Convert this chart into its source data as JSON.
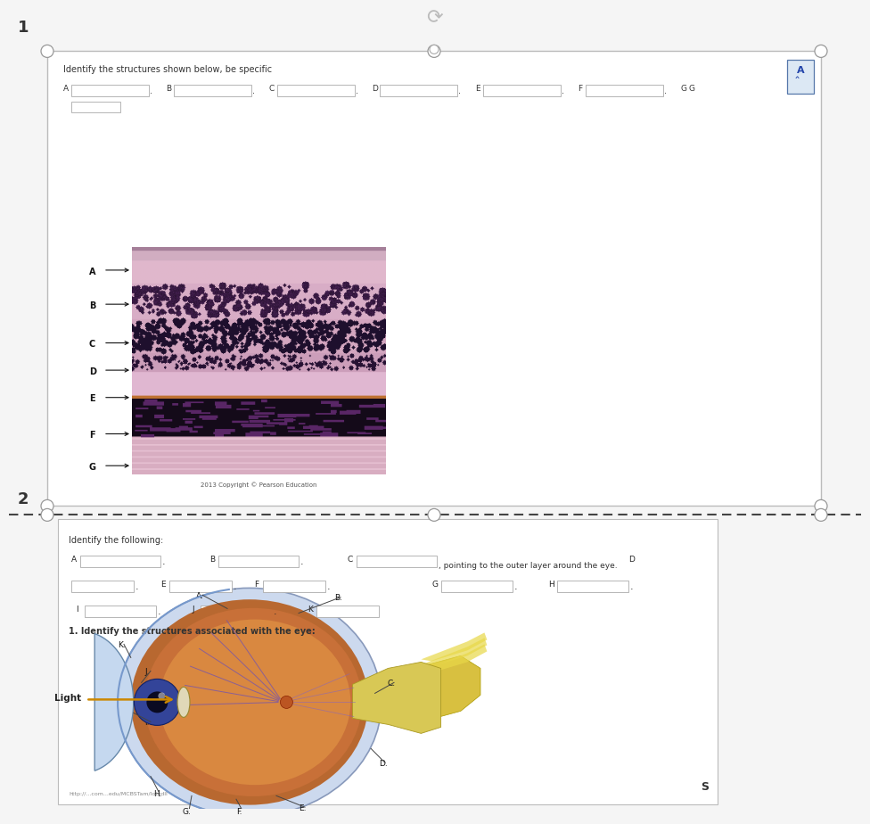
{
  "bg_color": "#f5f5f5",
  "section1": {
    "number": "1",
    "title": "Identify the structures shown below, be specific",
    "answer_labels": [
      "A",
      "B",
      "C",
      "D",
      "E",
      "F",
      "G"
    ],
    "arrow_labels": [
      "A",
      "B",
      "C",
      "D",
      "E",
      "F",
      "G"
    ],
    "copyright": "2013 Copyright © Pearson Education"
  },
  "section2": {
    "number": "2",
    "identify_text": "Identify the following:",
    "row1_suffix": ", pointing to the outer layer around the eye.",
    "eye_instruction": "1. Identify the structures associated with the eye:",
    "footer_S": "S"
  },
  "text_color": "#222222",
  "light_label_color": "#333333",
  "border_color": "#bbbbbb",
  "dashed_color": "#444444",
  "box_border": "#aaaaaa"
}
